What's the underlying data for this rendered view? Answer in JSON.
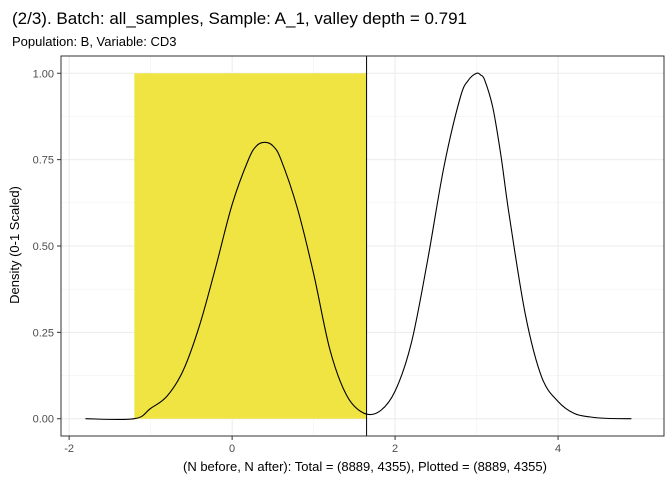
{
  "chart_data": {
    "type": "line",
    "title": "(2/3). Batch: all_samples, Sample: A_1, valley depth = 0.791",
    "subtitle": "Population: B, Variable: CD3",
    "xlabel": "(N before, N after): Total = (8889, 4355), Plotted = (8889, 4355)",
    "ylabel": "Density (0-1 Scaled)",
    "xlim": [
      -2.1,
      5.3
    ],
    "ylim": [
      -0.05,
      1.05
    ],
    "x_ticks": [
      {
        "value": -2,
        "label": "-2"
      },
      {
        "value": 0,
        "label": "0"
      },
      {
        "value": 2,
        "label": "2"
      },
      {
        "value": 4,
        "label": "4"
      }
    ],
    "y_ticks": [
      {
        "value": 0,
        "label": "0.00"
      },
      {
        "value": 0.25,
        "label": "0.25"
      },
      {
        "value": 0.5,
        "label": "0.50"
      },
      {
        "value": 0.75,
        "label": "0.75"
      },
      {
        "value": 1,
        "label": "1.00"
      }
    ],
    "grid": true,
    "highlight_region": {
      "x_min": -1.2,
      "x_max": 1.65,
      "y_min": 0,
      "y_max": 1,
      "color": "#F0E442"
    },
    "threshold_line": {
      "x": 1.65,
      "color": "#000000"
    },
    "series": [
      {
        "color": "#000000",
        "x": [
          -1.8,
          -1.2,
          -1.0,
          -0.8,
          -0.6,
          -0.4,
          -0.2,
          0.0,
          0.2,
          0.3,
          0.4,
          0.5,
          0.6,
          0.8,
          1.0,
          1.2,
          1.4,
          1.6,
          1.8,
          2.0,
          2.2,
          2.4,
          2.6,
          2.8,
          2.9,
          3.0,
          3.05,
          3.1,
          3.2,
          3.3,
          3.4,
          3.6,
          3.8,
          4.0,
          4.2,
          4.4,
          4.6,
          4.9
        ],
        "y": [
          0.0,
          0.0,
          0.03,
          0.065,
          0.14,
          0.27,
          0.44,
          0.62,
          0.75,
          0.79,
          0.8,
          0.79,
          0.75,
          0.61,
          0.42,
          0.2,
          0.07,
          0.018,
          0.02,
          0.08,
          0.22,
          0.46,
          0.73,
          0.93,
          0.98,
          1.0,
          0.995,
          0.98,
          0.9,
          0.76,
          0.59,
          0.3,
          0.12,
          0.05,
          0.015,
          0.005,
          0.001,
          0.0
        ]
      }
    ]
  }
}
